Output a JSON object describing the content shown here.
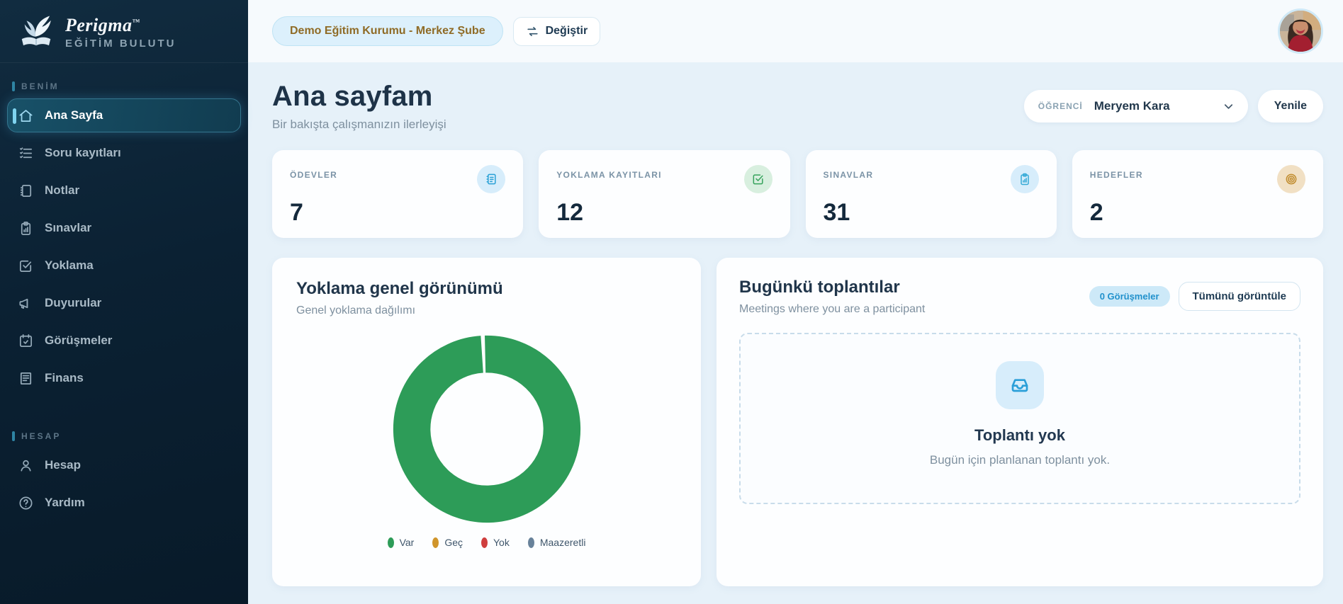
{
  "brand": {
    "name": "Perigma",
    "tm": "™",
    "tagline": "EĞİTİM BULUTU"
  },
  "sidebar": {
    "sections": [
      {
        "label": "BENİM",
        "items": [
          {
            "label": "Ana Sayfa",
            "icon": "home-icon",
            "active": true
          },
          {
            "label": "Soru kayıtları",
            "icon": "question-list-icon",
            "active": false
          },
          {
            "label": "Notlar",
            "icon": "notebook-icon",
            "active": false
          },
          {
            "label": "Sınavlar",
            "icon": "clipboard-chart-icon",
            "active": false
          },
          {
            "label": "Yoklama",
            "icon": "checkbox-icon",
            "active": false
          },
          {
            "label": "Duyurular",
            "icon": "megaphone-icon",
            "active": false
          },
          {
            "label": "Görüşmeler",
            "icon": "calendar-check-icon",
            "active": false
          },
          {
            "label": "Finans",
            "icon": "receipt-icon",
            "active": false
          }
        ]
      },
      {
        "label": "HESAP",
        "items": [
          {
            "label": "Hesap",
            "icon": "user-icon",
            "active": false
          },
          {
            "label": "Yardım",
            "icon": "help-circle-icon",
            "active": false
          }
        ]
      }
    ]
  },
  "header": {
    "institution_chip": "Demo Eğitim Kurumu - Merkez Şube",
    "change_button": "Değiştir"
  },
  "page": {
    "title": "Ana sayfam",
    "subtitle": "Bir bakışta çalışmanızın ilerleyişi",
    "student_select": {
      "label": "ÖĞRENCİ",
      "value": "Meryem Kara"
    },
    "refresh_button": "Yenile"
  },
  "stats": [
    {
      "label": "ÖDEVLER",
      "value": "7",
      "icon": "assignments-icon",
      "icon_color": "#2aa1d6",
      "icon_bg": "#d7edfb"
    },
    {
      "label": "YOKLAMA KAYITLARI",
      "value": "12",
      "icon": "check-square-icon",
      "icon_color": "#36a35c",
      "icon_bg": "#d8efdf"
    },
    {
      "label": "SINAVLAR",
      "value": "31",
      "icon": "clipboard-chart-icon",
      "icon_color": "#35aad6",
      "icon_bg": "#d7edfb"
    },
    {
      "label": "HEDEFLER",
      "value": "2",
      "icon": "target-icon",
      "icon_color": "#c08b2d",
      "icon_bg": "#f1e0c4"
    }
  ],
  "attendance_card": {
    "title": "Yoklama genel görünümü",
    "subtitle": "Genel yoklama dağılımı"
  },
  "chart_data": {
    "type": "pie",
    "variant": "donut",
    "title": "Yoklama genel görünümü",
    "subtitle": "Genel yoklama dağılımı",
    "categories": [
      "Var",
      "Geç",
      "Yok",
      "Maazeretli"
    ],
    "values": [
      100,
      0,
      0,
      0
    ],
    "unit": "percent (ring rendered fully green = all attendance 'Var')",
    "colors": [
      "#2d9c58",
      "#d0952b",
      "#cf3e3e",
      "#68829a"
    ],
    "legend_position": "bottom"
  },
  "meetings_card": {
    "title": "Bugünkü toplantılar",
    "subtitle": "Meetings where you are a participant",
    "badge": "0 Görüşmeler",
    "view_all_button": "Tümünü görüntüle",
    "empty": {
      "title": "Toplantı yok",
      "message": "Bugün için planlanan toplantı yok."
    }
  },
  "theme": {
    "sidebar_bg": "#0b2133",
    "active_item_border": "#35768f",
    "accent_cyan": "#7fd4f0",
    "main_bg": "#e6f1f9",
    "topbar_bg": "#f6fafd",
    "chip_text": "#8f6b26",
    "title_color": "#1e3348",
    "donut_green": "#2d9c58"
  }
}
